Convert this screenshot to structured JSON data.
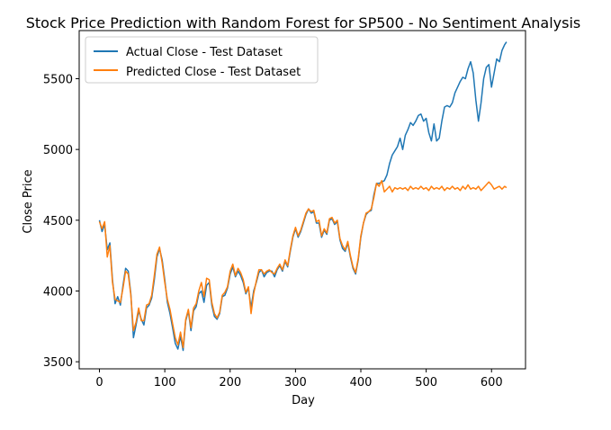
{
  "chart_data": {
    "type": "line",
    "title": "Stock Price Prediction with Random Forest for SP500 - No Sentiment Analysis",
    "xlabel": "Day",
    "ylabel": "Close Price",
    "xlim": [
      -31,
      652
    ],
    "ylim": [
      3450,
      5840
    ],
    "xticks": [
      0,
      100,
      200,
      300,
      400,
      500,
      600
    ],
    "yticks": [
      3500,
      4000,
      4500,
      5000,
      5500
    ],
    "grid": false,
    "legend_position": "upper left",
    "series": [
      {
        "name": "Actual Close - Test Dataset",
        "color": "#1f77b4",
        "points": [
          [
            0,
            4500
          ],
          [
            4,
            4420
          ],
          [
            8,
            4470
          ],
          [
            12,
            4290
          ],
          [
            16,
            4340
          ],
          [
            20,
            4080
          ],
          [
            24,
            3910
          ],
          [
            28,
            3960
          ],
          [
            32,
            3900
          ],
          [
            36,
            4040
          ],
          [
            40,
            4160
          ],
          [
            44,
            4140
          ],
          [
            48,
            3980
          ],
          [
            52,
            3670
          ],
          [
            56,
            3760
          ],
          [
            60,
            3860
          ],
          [
            64,
            3800
          ],
          [
            68,
            3760
          ],
          [
            72,
            3880
          ],
          [
            76,
            3900
          ],
          [
            80,
            3950
          ],
          [
            84,
            4080
          ],
          [
            88,
            4240
          ],
          [
            92,
            4300
          ],
          [
            96,
            4220
          ],
          [
            100,
            4080
          ],
          [
            104,
            3920
          ],
          [
            108,
            3840
          ],
          [
            112,
            3740
          ],
          [
            116,
            3630
          ],
          [
            120,
            3590
          ],
          [
            124,
            3680
          ],
          [
            128,
            3580
          ],
          [
            132,
            3790
          ],
          [
            136,
            3860
          ],
          [
            140,
            3720
          ],
          [
            144,
            3860
          ],
          [
            148,
            3890
          ],
          [
            152,
            3980
          ],
          [
            156,
            4000
          ],
          [
            160,
            3920
          ],
          [
            164,
            4040
          ],
          [
            168,
            4060
          ],
          [
            172,
            3900
          ],
          [
            176,
            3820
          ],
          [
            180,
            3800
          ],
          [
            184,
            3840
          ],
          [
            188,
            3960
          ],
          [
            192,
            3970
          ],
          [
            196,
            4020
          ],
          [
            200,
            4120
          ],
          [
            204,
            4170
          ],
          [
            208,
            4100
          ],
          [
            212,
            4140
          ],
          [
            216,
            4110
          ],
          [
            220,
            4060
          ],
          [
            224,
            3980
          ],
          [
            228,
            4020
          ],
          [
            232,
            3880
          ],
          [
            236,
            4000
          ],
          [
            240,
            4060
          ],
          [
            244,
            4130
          ],
          [
            248,
            4150
          ],
          [
            252,
            4100
          ],
          [
            256,
            4130
          ],
          [
            260,
            4140
          ],
          [
            264,
            4140
          ],
          [
            268,
            4100
          ],
          [
            272,
            4150
          ],
          [
            276,
            4180
          ],
          [
            280,
            4140
          ],
          [
            284,
            4210
          ],
          [
            288,
            4170
          ],
          [
            292,
            4280
          ],
          [
            296,
            4380
          ],
          [
            300,
            4440
          ],
          [
            304,
            4380
          ],
          [
            308,
            4420
          ],
          [
            312,
            4480
          ],
          [
            316,
            4540
          ],
          [
            320,
            4580
          ],
          [
            324,
            4550
          ],
          [
            328,
            4560
          ],
          [
            332,
            4480
          ],
          [
            336,
            4480
          ],
          [
            340,
            4380
          ],
          [
            344,
            4430
          ],
          [
            348,
            4400
          ],
          [
            352,
            4500
          ],
          [
            356,
            4510
          ],
          [
            360,
            4470
          ],
          [
            364,
            4490
          ],
          [
            368,
            4360
          ],
          [
            372,
            4300
          ],
          [
            376,
            4280
          ],
          [
            380,
            4340
          ],
          [
            384,
            4240
          ],
          [
            388,
            4160
          ],
          [
            392,
            4120
          ],
          [
            396,
            4220
          ],
          [
            400,
            4380
          ],
          [
            404,
            4480
          ],
          [
            408,
            4540
          ],
          [
            412,
            4560
          ],
          [
            416,
            4570
          ],
          [
            420,
            4680
          ],
          [
            424,
            4760
          ],
          [
            428,
            4760
          ],
          [
            432,
            4770
          ],
          [
            436,
            4780
          ],
          [
            440,
            4820
          ],
          [
            444,
            4900
          ],
          [
            448,
            4960
          ],
          [
            452,
            4990
          ],
          [
            456,
            5020
          ],
          [
            460,
            5080
          ],
          [
            464,
            5000
          ],
          [
            468,
            5100
          ],
          [
            472,
            5140
          ],
          [
            476,
            5190
          ],
          [
            480,
            5170
          ],
          [
            484,
            5200
          ],
          [
            488,
            5240
          ],
          [
            492,
            5250
          ],
          [
            496,
            5200
          ],
          [
            500,
            5220
          ],
          [
            504,
            5120
          ],
          [
            508,
            5060
          ],
          [
            512,
            5180
          ],
          [
            516,
            5060
          ],
          [
            520,
            5080
          ],
          [
            524,
            5200
          ],
          [
            528,
            5300
          ],
          [
            532,
            5310
          ],
          [
            536,
            5300
          ],
          [
            540,
            5330
          ],
          [
            544,
            5400
          ],
          [
            548,
            5440
          ],
          [
            552,
            5480
          ],
          [
            556,
            5510
          ],
          [
            560,
            5500
          ],
          [
            564,
            5570
          ],
          [
            568,
            5620
          ],
          [
            572,
            5540
          ],
          [
            576,
            5350
          ],
          [
            580,
            5200
          ],
          [
            584,
            5330
          ],
          [
            588,
            5500
          ],
          [
            592,
            5580
          ],
          [
            596,
            5600
          ],
          [
            600,
            5440
          ],
          [
            604,
            5540
          ],
          [
            608,
            5640
          ],
          [
            612,
            5620
          ],
          [
            616,
            5700
          ],
          [
            620,
            5740
          ],
          [
            623,
            5760
          ]
        ]
      },
      {
        "name": "Predicted Close - Test Dataset",
        "color": "#ff7f0e",
        "points": [
          [
            0,
            4490
          ],
          [
            4,
            4440
          ],
          [
            8,
            4490
          ],
          [
            12,
            4240
          ],
          [
            16,
            4320
          ],
          [
            20,
            4060
          ],
          [
            24,
            3940
          ],
          [
            28,
            3930
          ],
          [
            32,
            3920
          ],
          [
            36,
            4020
          ],
          [
            40,
            4140
          ],
          [
            44,
            4120
          ],
          [
            48,
            3970
          ],
          [
            52,
            3720
          ],
          [
            56,
            3780
          ],
          [
            60,
            3880
          ],
          [
            64,
            3790
          ],
          [
            68,
            3790
          ],
          [
            72,
            3900
          ],
          [
            76,
            3910
          ],
          [
            80,
            3970
          ],
          [
            84,
            4110
          ],
          [
            88,
            4260
          ],
          [
            92,
            4310
          ],
          [
            96,
            4200
          ],
          [
            100,
            4060
          ],
          [
            104,
            3940
          ],
          [
            108,
            3870
          ],
          [
            112,
            3770
          ],
          [
            116,
            3670
          ],
          [
            120,
            3620
          ],
          [
            124,
            3710
          ],
          [
            128,
            3600
          ],
          [
            132,
            3800
          ],
          [
            136,
            3870
          ],
          [
            140,
            3740
          ],
          [
            144,
            3880
          ],
          [
            148,
            3910
          ],
          [
            152,
            4000
          ],
          [
            156,
            4060
          ],
          [
            160,
            3960
          ],
          [
            164,
            4090
          ],
          [
            168,
            4080
          ],
          [
            172,
            3920
          ],
          [
            176,
            3840
          ],
          [
            180,
            3810
          ],
          [
            184,
            3850
          ],
          [
            188,
            3970
          ],
          [
            192,
            3990
          ],
          [
            196,
            4030
          ],
          [
            200,
            4140
          ],
          [
            204,
            4190
          ],
          [
            208,
            4110
          ],
          [
            212,
            4160
          ],
          [
            216,
            4130
          ],
          [
            220,
            4080
          ],
          [
            224,
            3990
          ],
          [
            228,
            4030
          ],
          [
            232,
            3840
          ],
          [
            236,
            3980
          ],
          [
            240,
            4070
          ],
          [
            244,
            4150
          ],
          [
            248,
            4150
          ],
          [
            252,
            4120
          ],
          [
            256,
            4140
          ],
          [
            260,
            4150
          ],
          [
            264,
            4130
          ],
          [
            268,
            4120
          ],
          [
            272,
            4160
          ],
          [
            276,
            4190
          ],
          [
            280,
            4150
          ],
          [
            284,
            4220
          ],
          [
            288,
            4180
          ],
          [
            292,
            4290
          ],
          [
            296,
            4390
          ],
          [
            300,
            4450
          ],
          [
            304,
            4390
          ],
          [
            308,
            4430
          ],
          [
            312,
            4490
          ],
          [
            316,
            4550
          ],
          [
            320,
            4580
          ],
          [
            324,
            4560
          ],
          [
            328,
            4570
          ],
          [
            332,
            4490
          ],
          [
            336,
            4500
          ],
          [
            340,
            4390
          ],
          [
            344,
            4440
          ],
          [
            348,
            4410
          ],
          [
            352,
            4510
          ],
          [
            356,
            4520
          ],
          [
            360,
            4480
          ],
          [
            364,
            4500
          ],
          [
            368,
            4370
          ],
          [
            372,
            4320
          ],
          [
            376,
            4290
          ],
          [
            380,
            4350
          ],
          [
            384,
            4250
          ],
          [
            388,
            4170
          ],
          [
            392,
            4130
          ],
          [
            396,
            4230
          ],
          [
            400,
            4390
          ],
          [
            404,
            4480
          ],
          [
            408,
            4550
          ],
          [
            412,
            4560
          ],
          [
            416,
            4580
          ],
          [
            420,
            4660
          ],
          [
            424,
            4760
          ],
          [
            428,
            4740
          ],
          [
            432,
            4780
          ],
          [
            436,
            4700
          ],
          [
            440,
            4720
          ],
          [
            444,
            4740
          ],
          [
            448,
            4700
          ],
          [
            452,
            4730
          ],
          [
            456,
            4720
          ],
          [
            460,
            4730
          ],
          [
            464,
            4720
          ],
          [
            468,
            4730
          ],
          [
            472,
            4710
          ],
          [
            476,
            4740
          ],
          [
            480,
            4720
          ],
          [
            484,
            4730
          ],
          [
            488,
            4720
          ],
          [
            492,
            4740
          ],
          [
            496,
            4720
          ],
          [
            500,
            4730
          ],
          [
            504,
            4710
          ],
          [
            508,
            4740
          ],
          [
            512,
            4720
          ],
          [
            516,
            4730
          ],
          [
            520,
            4720
          ],
          [
            524,
            4740
          ],
          [
            528,
            4710
          ],
          [
            532,
            4730
          ],
          [
            536,
            4720
          ],
          [
            540,
            4740
          ],
          [
            544,
            4720
          ],
          [
            548,
            4730
          ],
          [
            552,
            4710
          ],
          [
            556,
            4740
          ],
          [
            560,
            4720
          ],
          [
            564,
            4750
          ],
          [
            568,
            4720
          ],
          [
            572,
            4730
          ],
          [
            576,
            4720
          ],
          [
            580,
            4740
          ],
          [
            584,
            4710
          ],
          [
            588,
            4730
          ],
          [
            592,
            4750
          ],
          [
            596,
            4770
          ],
          [
            600,
            4750
          ],
          [
            604,
            4720
          ],
          [
            608,
            4730
          ],
          [
            612,
            4740
          ],
          [
            616,
            4720
          ],
          [
            620,
            4740
          ],
          [
            623,
            4730
          ]
        ]
      }
    ]
  }
}
